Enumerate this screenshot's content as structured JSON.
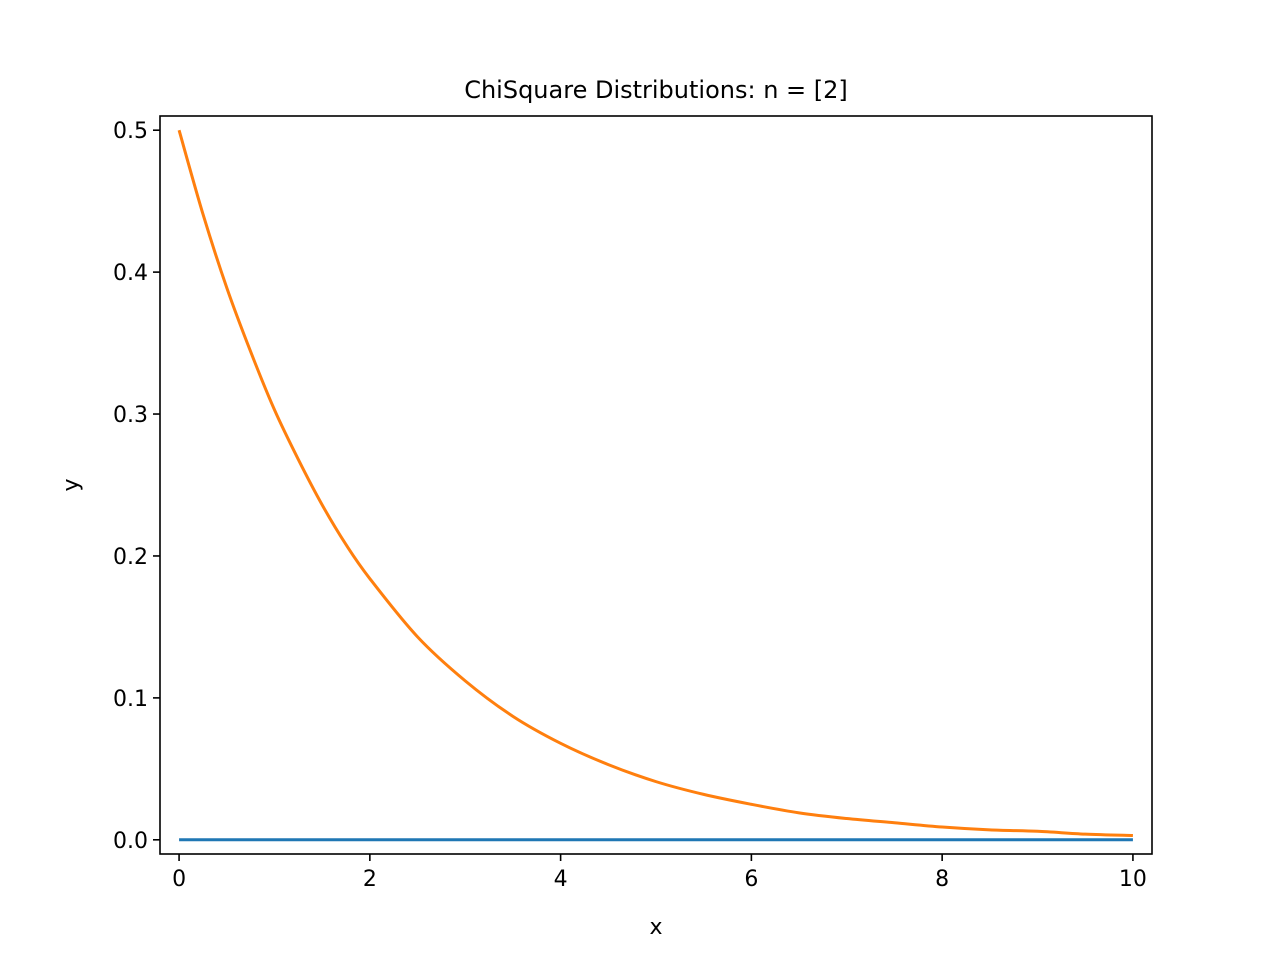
{
  "chart_data": {
    "type": "line",
    "title": "ChiSquare Distributions: n = [2]",
    "xlabel": "x",
    "ylabel": "y",
    "xlim": [
      -0.2,
      10.2
    ],
    "ylim": [
      -0.01,
      0.51
    ],
    "x_ticks": [
      0,
      2,
      4,
      6,
      8,
      10
    ],
    "x_tick_labels": [
      "0",
      "2",
      "4",
      "6",
      "8",
      "10"
    ],
    "y_ticks": [
      0.0,
      0.1,
      0.2,
      0.3,
      0.4,
      0.5
    ],
    "y_tick_labels": [
      "0.0",
      "0.1",
      "0.2",
      "0.3",
      "0.4",
      "0.5"
    ],
    "grid": false,
    "legend": false,
    "series": [
      {
        "color": "#1f77b4",
        "x": [
          0,
          1,
          2,
          3,
          4,
          5,
          6,
          7,
          8,
          9,
          10
        ],
        "y": [
          0,
          0,
          0,
          0,
          0,
          0,
          0,
          0,
          0,
          0,
          0
        ]
      },
      {
        "color": "#ff7f0e",
        "x": [
          0,
          0.25,
          0.5,
          0.75,
          1,
          1.25,
          1.5,
          1.75,
          2,
          2.5,
          3,
          3.5,
          4,
          4.5,
          5,
          5.5,
          6,
          6.5,
          7,
          7.5,
          8,
          8.5,
          9,
          9.5,
          10
        ],
        "y": [
          0.5,
          0.441,
          0.389,
          0.344,
          0.303,
          0.268,
          0.236,
          0.208,
          0.184,
          0.143,
          0.112,
          0.087,
          0.068,
          0.053,
          0.041,
          0.032,
          0.025,
          0.019,
          0.015,
          0.012,
          0.009,
          0.007,
          0.006,
          0.004,
          0.003
        ]
      }
    ]
  }
}
